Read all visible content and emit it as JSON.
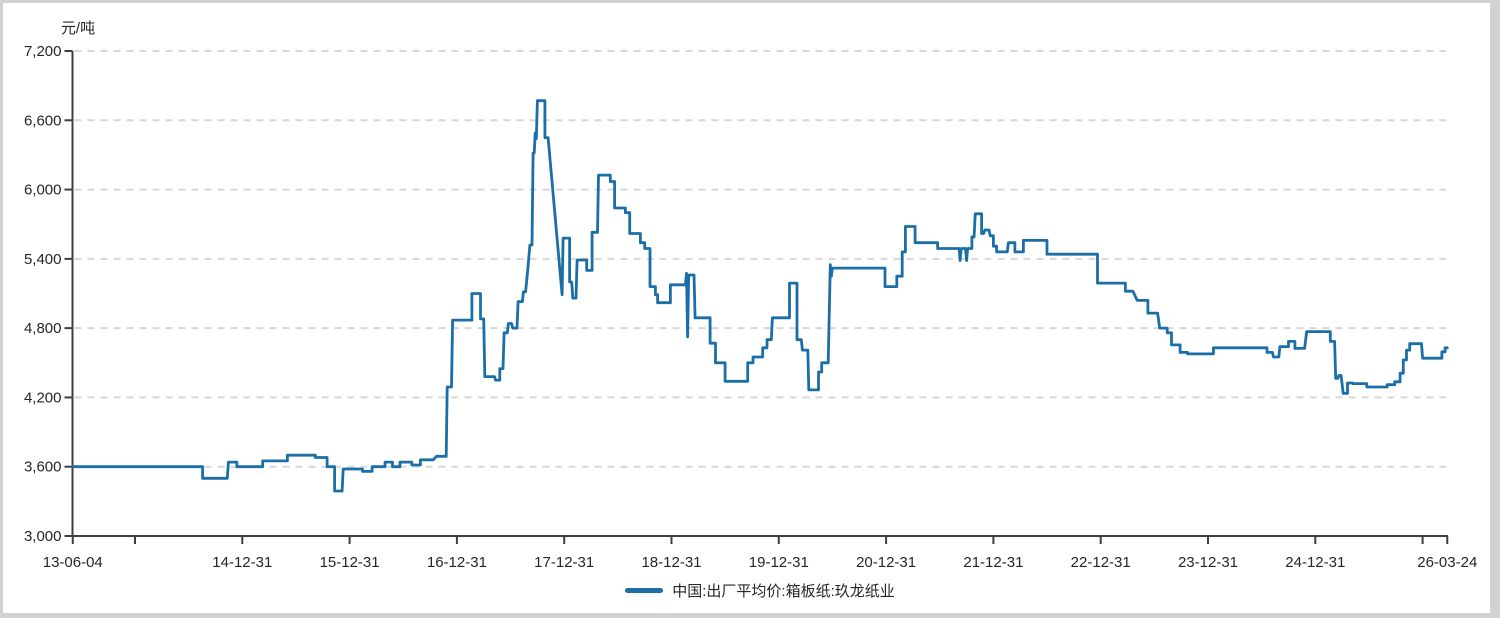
{
  "frame": {
    "border_color": "#d2d2d2",
    "background": "#ffffff"
  },
  "chart_data": {
    "type": "line",
    "title": "",
    "unit_label": "元/吨",
    "xlabel": "",
    "ylabel": "元/吨",
    "x_range": [
      2013.42,
      2026.23
    ],
    "ylim": [
      3000,
      7200
    ],
    "grid": "horizontal-dashed",
    "legend_position": "bottom-center",
    "axis_color": "#3f3f3f",
    "grid_color": "#d8d8d8",
    "text_color": "#262626",
    "y_ticks": [
      {
        "value": 3000,
        "label": "3,000"
      },
      {
        "value": 3600,
        "label": "3,600"
      },
      {
        "value": 4200,
        "label": "4,200"
      },
      {
        "value": 4800,
        "label": "4,800"
      },
      {
        "value": 5400,
        "label": "5,400"
      },
      {
        "value": 6000,
        "label": "6,000"
      },
      {
        "value": 6600,
        "label": "6,600"
      },
      {
        "value": 7200,
        "label": "7,200"
      }
    ],
    "x_ticks": [
      {
        "pos": 2013.42,
        "label": "13-06-04"
      },
      {
        "pos": 2014,
        "label": ""
      },
      {
        "pos": 2015,
        "label": "14-12-31"
      },
      {
        "pos": 2016,
        "label": "15-12-31"
      },
      {
        "pos": 2017,
        "label": "16-12-31"
      },
      {
        "pos": 2018,
        "label": "17-12-31"
      },
      {
        "pos": 2019,
        "label": "18-12-31"
      },
      {
        "pos": 2020,
        "label": "19-12-31"
      },
      {
        "pos": 2021,
        "label": "20-12-31"
      },
      {
        "pos": 2022,
        "label": "21-12-31"
      },
      {
        "pos": 2023,
        "label": "22-12-31"
      },
      {
        "pos": 2024,
        "label": "23-12-31"
      },
      {
        "pos": 2025,
        "label": "24-12-31"
      },
      {
        "pos": 2026,
        "label": ""
      },
      {
        "pos": 2026.23,
        "label": "26-03-24"
      }
    ],
    "series": [
      {
        "name": "中国:出厂平均价:箱板纸:玖龙纸业",
        "color": "#1c6fa6",
        "points": [
          [
            2013.42,
            3600
          ],
          [
            2014.63,
            3600
          ],
          [
            2014.63,
            3500
          ],
          [
            2014.86,
            3500
          ],
          [
            2014.87,
            3640
          ],
          [
            2014.95,
            3640
          ],
          [
            2014.95,
            3600
          ],
          [
            2015.19,
            3600
          ],
          [
            2015.19,
            3650
          ],
          [
            2015.42,
            3650
          ],
          [
            2015.42,
            3700
          ],
          [
            2015.68,
            3700
          ],
          [
            2015.68,
            3680
          ],
          [
            2015.79,
            3680
          ],
          [
            2015.79,
            3600
          ],
          [
            2015.86,
            3600
          ],
          [
            2015.86,
            3390
          ],
          [
            2015.93,
            3390
          ],
          [
            2015.94,
            3580
          ],
          [
            2016.12,
            3580
          ],
          [
            2016.12,
            3560
          ],
          [
            2016.21,
            3560
          ],
          [
            2016.21,
            3600
          ],
          [
            2016.33,
            3600
          ],
          [
            2016.33,
            3640
          ],
          [
            2016.4,
            3640
          ],
          [
            2016.4,
            3600
          ],
          [
            2016.47,
            3600
          ],
          [
            2016.47,
            3640
          ],
          [
            2016.58,
            3640
          ],
          [
            2016.58,
            3615
          ],
          [
            2016.66,
            3615
          ],
          [
            2016.66,
            3660
          ],
          [
            2016.78,
            3660
          ],
          [
            2016.81,
            3690
          ],
          [
            2016.9,
            3690
          ],
          [
            2016.91,
            4290
          ],
          [
            2016.95,
            4290
          ],
          [
            2016.96,
            4870
          ],
          [
            2017.14,
            4870
          ],
          [
            2017.14,
            5100
          ],
          [
            2017.22,
            5100
          ],
          [
            2017.22,
            4880
          ],
          [
            2017.25,
            4880
          ],
          [
            2017.26,
            4380
          ],
          [
            2017.35,
            4380
          ],
          [
            2017.36,
            4350
          ],
          [
            2017.4,
            4350
          ],
          [
            2017.4,
            4450
          ],
          [
            2017.43,
            4450
          ],
          [
            2017.44,
            4760
          ],
          [
            2017.47,
            4760
          ],
          [
            2017.48,
            4840
          ],
          [
            2017.51,
            4840
          ],
          [
            2017.52,
            4800
          ],
          [
            2017.56,
            4800
          ],
          [
            2017.57,
            5030
          ],
          [
            2017.61,
            5030
          ],
          [
            2017.62,
            5115
          ],
          [
            2017.64,
            5115
          ],
          [
            2017.66,
            5300
          ],
          [
            2017.68,
            5520
          ],
          [
            2017.7,
            5520
          ],
          [
            2017.71,
            6315
          ],
          [
            2017.72,
            6315
          ],
          [
            2017.73,
            6490
          ],
          [
            2017.74,
            6440
          ],
          [
            2017.75,
            6770
          ],
          [
            2017.82,
            6770
          ],
          [
            2017.82,
            6450
          ],
          [
            2017.85,
            6450
          ],
          [
            2017.98,
            5090
          ],
          [
            2017.99,
            5580
          ],
          [
            2018.05,
            5580
          ],
          [
            2018.05,
            5200
          ],
          [
            2018.07,
            5200
          ],
          [
            2018.08,
            5060
          ],
          [
            2018.11,
            5060
          ],
          [
            2018.12,
            5390
          ],
          [
            2018.21,
            5390
          ],
          [
            2018.21,
            5300
          ],
          [
            2018.26,
            5300
          ],
          [
            2018.26,
            5630
          ],
          [
            2018.31,
            5630
          ],
          [
            2018.32,
            6125
          ],
          [
            2018.43,
            6125
          ],
          [
            2018.43,
            6070
          ],
          [
            2018.47,
            6070
          ],
          [
            2018.47,
            5840
          ],
          [
            2018.57,
            5840
          ],
          [
            2018.57,
            5800
          ],
          [
            2018.61,
            5800
          ],
          [
            2018.61,
            5620
          ],
          [
            2018.71,
            5620
          ],
          [
            2018.71,
            5540
          ],
          [
            2018.75,
            5540
          ],
          [
            2018.75,
            5490
          ],
          [
            2018.8,
            5490
          ],
          [
            2018.8,
            5160
          ],
          [
            2018.85,
            5160
          ],
          [
            2018.85,
            5090
          ],
          [
            2018.87,
            5090
          ],
          [
            2018.87,
            5020
          ],
          [
            2018.99,
            5020
          ],
          [
            2018.99,
            5175
          ],
          [
            2019.13,
            5175
          ],
          [
            2019.14,
            5275
          ],
          [
            2019.15,
            4725
          ],
          [
            2019.16,
            5260
          ],
          [
            2019.21,
            5260
          ],
          [
            2019.22,
            4890
          ],
          [
            2019.36,
            4890
          ],
          [
            2019.36,
            4670
          ],
          [
            2019.41,
            4670
          ],
          [
            2019.41,
            4500
          ],
          [
            2019.5,
            4500
          ],
          [
            2019.5,
            4340
          ],
          [
            2019.71,
            4340
          ],
          [
            2019.71,
            4500
          ],
          [
            2019.76,
            4500
          ],
          [
            2019.76,
            4550
          ],
          [
            2019.85,
            4550
          ],
          [
            2019.85,
            4630
          ],
          [
            2019.89,
            4630
          ],
          [
            2019.89,
            4700
          ],
          [
            2019.93,
            4700
          ],
          [
            2019.94,
            4890
          ],
          [
            2020.1,
            4890
          ],
          [
            2020.1,
            5190
          ],
          [
            2020.17,
            5190
          ],
          [
            2020.17,
            4700
          ],
          [
            2020.21,
            4700
          ],
          [
            2020.22,
            4610
          ],
          [
            2020.27,
            4610
          ],
          [
            2020.28,
            4265
          ],
          [
            2020.37,
            4265
          ],
          [
            2020.37,
            4420
          ],
          [
            2020.4,
            4420
          ],
          [
            2020.4,
            4500
          ],
          [
            2020.46,
            4500
          ],
          [
            2020.48,
            5350
          ],
          [
            2020.49,
            5250
          ],
          [
            2020.5,
            5320
          ],
          [
            2020.99,
            5320
          ],
          [
            2020.99,
            5160
          ],
          [
            2021.1,
            5160
          ],
          [
            2021.1,
            5250
          ],
          [
            2021.15,
            5250
          ],
          [
            2021.15,
            5460
          ],
          [
            2021.18,
            5460
          ],
          [
            2021.18,
            5680
          ],
          [
            2021.27,
            5680
          ],
          [
            2021.27,
            5540
          ],
          [
            2021.48,
            5540
          ],
          [
            2021.48,
            5490
          ],
          [
            2021.68,
            5490
          ],
          [
            2021.69,
            5385
          ],
          [
            2021.7,
            5490
          ],
          [
            2021.74,
            5490
          ],
          [
            2021.75,
            5385
          ],
          [
            2021.76,
            5490
          ],
          [
            2021.8,
            5490
          ],
          [
            2021.8,
            5590
          ],
          [
            2021.82,
            5590
          ],
          [
            2021.83,
            5790
          ],
          [
            2021.89,
            5790
          ],
          [
            2021.89,
            5620
          ],
          [
            2021.91,
            5620
          ],
          [
            2021.92,
            5650
          ],
          [
            2021.96,
            5650
          ],
          [
            2021.97,
            5600
          ],
          [
            2022,
            5600
          ],
          [
            2022,
            5510
          ],
          [
            2022.03,
            5510
          ],
          [
            2022.03,
            5460
          ],
          [
            2022.13,
            5460
          ],
          [
            2022.14,
            5540
          ],
          [
            2022.2,
            5540
          ],
          [
            2022.2,
            5460
          ],
          [
            2022.28,
            5460
          ],
          [
            2022.28,
            5560
          ],
          [
            2022.5,
            5560
          ],
          [
            2022.5,
            5440
          ],
          [
            2022.97,
            5440
          ],
          [
            2022.97,
            5190
          ],
          [
            2023.23,
            5190
          ],
          [
            2023.23,
            5120
          ],
          [
            2023.3,
            5120
          ],
          [
            2023.34,
            5040
          ],
          [
            2023.44,
            5040
          ],
          [
            2023.44,
            4930
          ],
          [
            2023.53,
            4930
          ],
          [
            2023.55,
            4800
          ],
          [
            2023.62,
            4800
          ],
          [
            2023.62,
            4760
          ],
          [
            2023.66,
            4760
          ],
          [
            2023.66,
            4655
          ],
          [
            2023.74,
            4655
          ],
          [
            2023.74,
            4590
          ],
          [
            2023.81,
            4590
          ],
          [
            2023.81,
            4577
          ],
          [
            2024.05,
            4577
          ],
          [
            2024.05,
            4630
          ],
          [
            2024.55,
            4630
          ],
          [
            2024.55,
            4590
          ],
          [
            2024.6,
            4590
          ],
          [
            2024.61,
            4550
          ],
          [
            2024.66,
            4550
          ],
          [
            2024.67,
            4640
          ],
          [
            2024.75,
            4640
          ],
          [
            2024.75,
            4685
          ],
          [
            2024.81,
            4685
          ],
          [
            2024.81,
            4625
          ],
          [
            2024.9,
            4625
          ],
          [
            2024.92,
            4770
          ],
          [
            2025.14,
            4770
          ],
          [
            2025.14,
            4685
          ],
          [
            2025.18,
            4685
          ],
          [
            2025.19,
            4365
          ],
          [
            2025.21,
            4365
          ],
          [
            2025.22,
            4390
          ],
          [
            2025.24,
            4390
          ],
          [
            2025.26,
            4235
          ],
          [
            2025.3,
            4235
          ],
          [
            2025.3,
            4325
          ],
          [
            2025.35,
            4325
          ],
          [
            2025.35,
            4320
          ],
          [
            2025.48,
            4320
          ],
          [
            2025.48,
            4290
          ],
          [
            2025.67,
            4290
          ],
          [
            2025.67,
            4310
          ],
          [
            2025.74,
            4310
          ],
          [
            2025.74,
            4335
          ],
          [
            2025.79,
            4335
          ],
          [
            2025.79,
            4410
          ],
          [
            2025.82,
            4410
          ],
          [
            2025.82,
            4525
          ],
          [
            2025.85,
            4525
          ],
          [
            2025.85,
            4610
          ],
          [
            2025.88,
            4610
          ],
          [
            2025.88,
            4665
          ],
          [
            2025.99,
            4665
          ],
          [
            2026,
            4540
          ],
          [
            2026.18,
            4540
          ],
          [
            2026.18,
            4595
          ],
          [
            2026.21,
            4595
          ],
          [
            2026.21,
            4630
          ],
          [
            2026.23,
            4630
          ]
        ]
      }
    ]
  },
  "legend": {
    "items": [
      {
        "label": "中国:出厂平均价:箱板纸:玖龙纸业",
        "color": "#1c6fa6"
      }
    ]
  }
}
